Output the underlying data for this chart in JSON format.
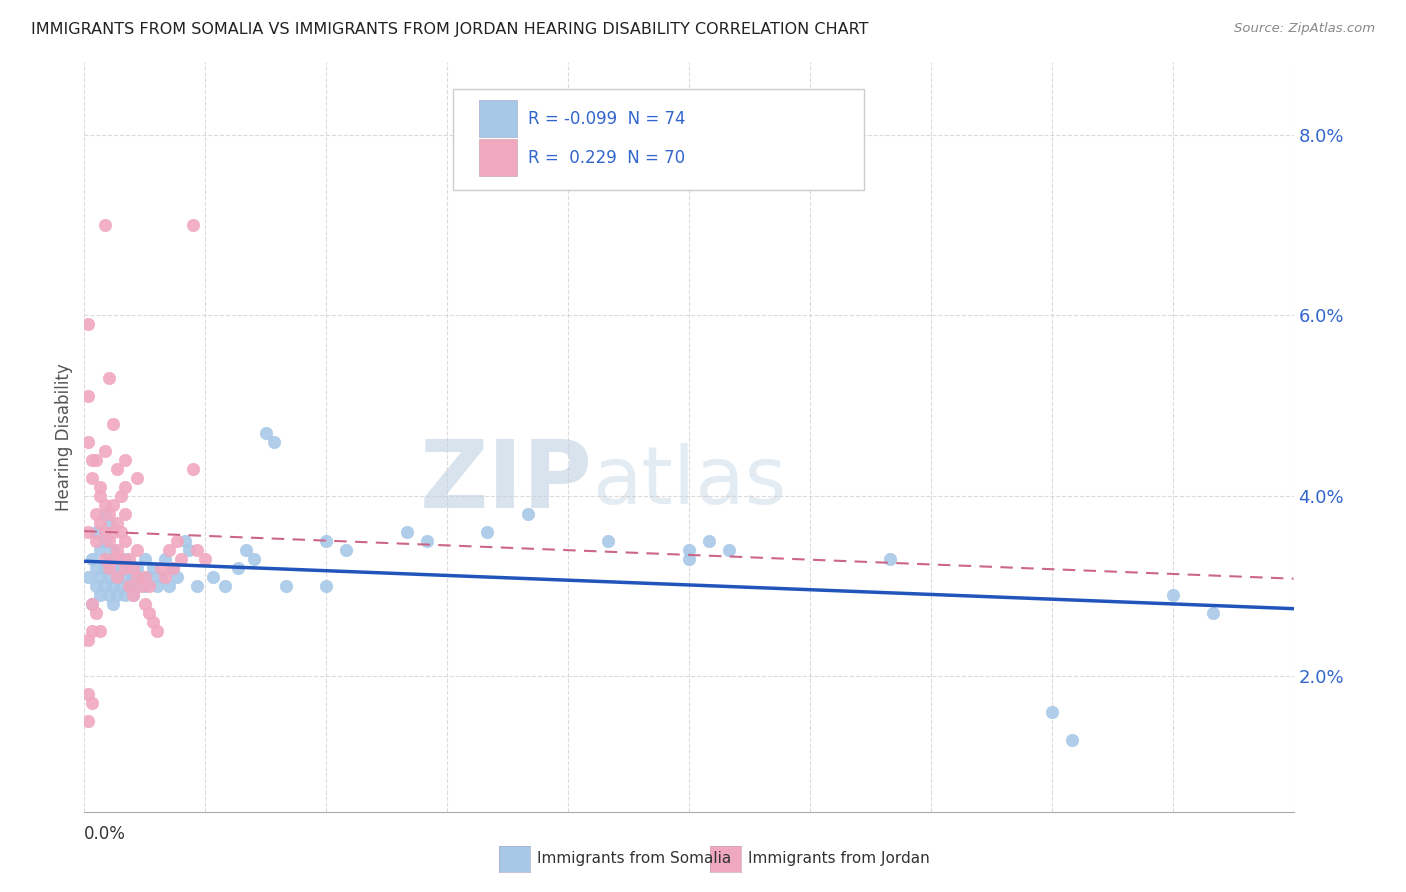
{
  "title": "IMMIGRANTS FROM SOMALIA VS IMMIGRANTS FROM JORDAN HEARING DISABILITY CORRELATION CHART",
  "source": "Source: ZipAtlas.com",
  "ylabel": "Hearing Disability",
  "xlim": [
    0.0,
    0.3
  ],
  "ylim": [
    0.005,
    0.088
  ],
  "yticks": [
    0.02,
    0.04,
    0.06,
    0.08
  ],
  "ytick_labels": [
    "2.0%",
    "4.0%",
    "6.0%",
    "8.0%"
  ],
  "somalia_color": "#a8c8e8",
  "jordan_color": "#f0a8c0",
  "somalia_line_color": "#2255bb",
  "jordan_line_color": "#cc6688",
  "watermark_zip_color": "#c8d8ee",
  "watermark_atlas_color": "#b8cce4",
  "somalia_points": [
    [
      0.001,
      0.031
    ],
    [
      0.002,
      0.033
    ],
    [
      0.002,
      0.028
    ],
    [
      0.003,
      0.03
    ],
    [
      0.003,
      0.032
    ],
    [
      0.003,
      0.036
    ],
    [
      0.004,
      0.029
    ],
    [
      0.004,
      0.031
    ],
    [
      0.004,
      0.034
    ],
    [
      0.005,
      0.03
    ],
    [
      0.005,
      0.032
    ],
    [
      0.005,
      0.035
    ],
    [
      0.005,
      0.038
    ],
    [
      0.006,
      0.029
    ],
    [
      0.006,
      0.031
    ],
    [
      0.006,
      0.033
    ],
    [
      0.006,
      0.037
    ],
    [
      0.007,
      0.028
    ],
    [
      0.007,
      0.03
    ],
    [
      0.007,
      0.032
    ],
    [
      0.007,
      0.034
    ],
    [
      0.008,
      0.029
    ],
    [
      0.008,
      0.031
    ],
    [
      0.008,
      0.033
    ],
    [
      0.009,
      0.03
    ],
    [
      0.009,
      0.032
    ],
    [
      0.01,
      0.029
    ],
    [
      0.01,
      0.031
    ],
    [
      0.01,
      0.033
    ],
    [
      0.011,
      0.03
    ],
    [
      0.011,
      0.032
    ],
    [
      0.012,
      0.029
    ],
    [
      0.012,
      0.031
    ],
    [
      0.013,
      0.03
    ],
    [
      0.013,
      0.032
    ],
    [
      0.014,
      0.031
    ],
    [
      0.015,
      0.03
    ],
    [
      0.015,
      0.033
    ],
    [
      0.016,
      0.031
    ],
    [
      0.017,
      0.032
    ],
    [
      0.018,
      0.03
    ],
    [
      0.019,
      0.031
    ],
    [
      0.02,
      0.033
    ],
    [
      0.021,
      0.03
    ],
    [
      0.022,
      0.032
    ],
    [
      0.023,
      0.031
    ],
    [
      0.025,
      0.035
    ],
    [
      0.026,
      0.034
    ],
    [
      0.028,
      0.03
    ],
    [
      0.032,
      0.031
    ],
    [
      0.035,
      0.03
    ],
    [
      0.038,
      0.032
    ],
    [
      0.04,
      0.034
    ],
    [
      0.042,
      0.033
    ],
    [
      0.045,
      0.047
    ],
    [
      0.047,
      0.046
    ],
    [
      0.05,
      0.03
    ],
    [
      0.06,
      0.035
    ],
    [
      0.065,
      0.034
    ],
    [
      0.08,
      0.036
    ],
    [
      0.085,
      0.035
    ],
    [
      0.1,
      0.036
    ],
    [
      0.11,
      0.038
    ],
    [
      0.13,
      0.035
    ],
    [
      0.15,
      0.034
    ],
    [
      0.155,
      0.035
    ],
    [
      0.16,
      0.034
    ],
    [
      0.2,
      0.033
    ],
    [
      0.24,
      0.016
    ],
    [
      0.245,
      0.013
    ],
    [
      0.27,
      0.029
    ],
    [
      0.28,
      0.027
    ],
    [
      0.06,
      0.03
    ],
    [
      0.15,
      0.033
    ]
  ],
  "jordan_points": [
    [
      0.001,
      0.051
    ],
    [
      0.001,
      0.036
    ],
    [
      0.002,
      0.042
    ],
    [
      0.003,
      0.038
    ],
    [
      0.003,
      0.035
    ],
    [
      0.004,
      0.037
    ],
    [
      0.004,
      0.04
    ],
    [
      0.005,
      0.033
    ],
    [
      0.005,
      0.036
    ],
    [
      0.005,
      0.039
    ],
    [
      0.006,
      0.032
    ],
    [
      0.006,
      0.035
    ],
    [
      0.006,
      0.038
    ],
    [
      0.007,
      0.033
    ],
    [
      0.007,
      0.036
    ],
    [
      0.007,
      0.039
    ],
    [
      0.008,
      0.031
    ],
    [
      0.008,
      0.034
    ],
    [
      0.008,
      0.037
    ],
    [
      0.009,
      0.033
    ],
    [
      0.009,
      0.036
    ],
    [
      0.01,
      0.032
    ],
    [
      0.01,
      0.035
    ],
    [
      0.01,
      0.038
    ],
    [
      0.011,
      0.03
    ],
    [
      0.011,
      0.033
    ],
    [
      0.012,
      0.029
    ],
    [
      0.012,
      0.032
    ],
    [
      0.013,
      0.031
    ],
    [
      0.013,
      0.034
    ],
    [
      0.014,
      0.03
    ],
    [
      0.015,
      0.028
    ],
    [
      0.015,
      0.031
    ],
    [
      0.016,
      0.027
    ],
    [
      0.016,
      0.03
    ],
    [
      0.017,
      0.026
    ],
    [
      0.018,
      0.025
    ],
    [
      0.019,
      0.032
    ],
    [
      0.02,
      0.031
    ],
    [
      0.021,
      0.034
    ],
    [
      0.022,
      0.032
    ],
    [
      0.023,
      0.035
    ],
    [
      0.024,
      0.033
    ],
    [
      0.027,
      0.07
    ],
    [
      0.027,
      0.043
    ],
    [
      0.028,
      0.034
    ],
    [
      0.03,
      0.033
    ],
    [
      0.013,
      0.042
    ],
    [
      0.01,
      0.044
    ],
    [
      0.005,
      0.07
    ],
    [
      0.006,
      0.053
    ],
    [
      0.005,
      0.045
    ],
    [
      0.007,
      0.048
    ],
    [
      0.008,
      0.043
    ],
    [
      0.009,
      0.04
    ],
    [
      0.01,
      0.041
    ],
    [
      0.001,
      0.059
    ],
    [
      0.001,
      0.046
    ],
    [
      0.002,
      0.044
    ],
    [
      0.003,
      0.044
    ],
    [
      0.004,
      0.041
    ],
    [
      0.002,
      0.028
    ],
    [
      0.003,
      0.027
    ],
    [
      0.004,
      0.025
    ],
    [
      0.002,
      0.025
    ],
    [
      0.001,
      0.024
    ],
    [
      0.001,
      0.018
    ],
    [
      0.001,
      0.015
    ],
    [
      0.002,
      0.017
    ]
  ]
}
